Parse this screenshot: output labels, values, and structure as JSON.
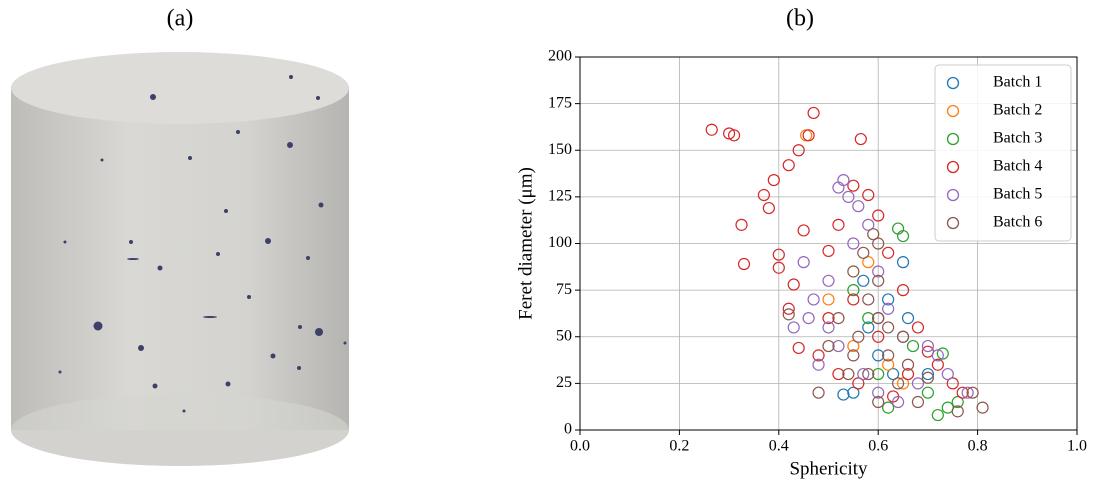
{
  "panel_labels": [
    "(a)",
    "(b)"
  ],
  "chart_data": {
    "type": "scatter",
    "x_label": "Sphericity",
    "y_label": "Feret diameter (μm)",
    "xlim": [
      0,
      1
    ],
    "ylim": [
      0,
      200
    ],
    "xticks": [
      {
        "value": 0,
        "label": "0.0"
      },
      0.2,
      0.4,
      0.6,
      0.8,
      {
        "value": 1,
        "label": "1.0"
      }
    ],
    "yticks": [
      0,
      25,
      50,
      75,
      100,
      125,
      150,
      175,
      200
    ],
    "grid": true,
    "legend": "upper right",
    "series": [
      {
        "name": "Batch 1",
        "color": "#1f77b4",
        "x": [
          0.55,
          0.6,
          0.65,
          0.62,
          0.58,
          0.66,
          0.7,
          0.53,
          0.57,
          0.63
        ],
        "y": [
          20,
          40,
          90,
          70,
          55,
          60,
          30,
          19,
          80,
          30
        ]
      },
      {
        "name": "Batch 2",
        "color": "#ff7f0e",
        "x": [
          0.455,
          0.6,
          0.55,
          0.62,
          0.58,
          0.65,
          0.5
        ],
        "y": [
          158,
          60,
          45,
          35,
          90,
          25,
          70
        ]
      },
      {
        "name": "Batch 3",
        "color": "#2ca02c",
        "x": [
          0.72,
          0.74,
          0.73,
          0.65,
          0.64,
          0.7,
          0.62,
          0.58,
          0.6,
          0.67,
          0.76,
          0.55
        ],
        "y": [
          8,
          12,
          41,
          104,
          108,
          20,
          12,
          60,
          30,
          45,
          15,
          75
        ]
      },
      {
        "name": "Batch 4",
        "color": "#d62728",
        "x": [
          0.265,
          0.3,
          0.31,
          0.325,
          0.33,
          0.37,
          0.38,
          0.39,
          0.4,
          0.4,
          0.42,
          0.44,
          0.46,
          0.47,
          0.565,
          0.42,
          0.43,
          0.45,
          0.44,
          0.5,
          0.52,
          0.55,
          0.58,
          0.6,
          0.62,
          0.65,
          0.68,
          0.7,
          0.72,
          0.75,
          0.77,
          0.55,
          0.6,
          0.5,
          0.48,
          0.66,
          0.63,
          0.56,
          0.52
        ],
        "y": [
          161,
          159,
          158,
          110,
          89,
          126,
          119,
          134,
          94,
          87,
          142,
          150,
          158,
          170,
          156,
          65,
          78,
          107,
          44,
          96,
          110,
          131,
          126,
          115,
          95,
          75,
          55,
          42,
          35,
          25,
          20,
          70,
          50,
          60,
          40,
          30,
          18,
          25,
          30
        ]
      },
      {
        "name": "Batch 5",
        "color": "#9467bd",
        "x": [
          0.53,
          0.52,
          0.54,
          0.56,
          0.45,
          0.47,
          0.5,
          0.48,
          0.55,
          0.58,
          0.6,
          0.62,
          0.65,
          0.7,
          0.72,
          0.74,
          0.78,
          0.5,
          0.52,
          0.57,
          0.6,
          0.64,
          0.68,
          0.46,
          0.43,
          0.6
        ],
        "y": [
          134,
          130,
          125,
          120,
          90,
          70,
          55,
          35,
          100,
          110,
          85,
          65,
          50,
          45,
          40,
          30,
          20,
          80,
          45,
          30,
          20,
          15,
          25,
          60,
          55,
          60
        ]
      },
      {
        "name": "Batch 6",
        "color": "#8c564b",
        "x": [
          0.81,
          0.79,
          0.76,
          0.68,
          0.6,
          0.58,
          0.56,
          0.55,
          0.6,
          0.62,
          0.57,
          0.59,
          0.5,
          0.52,
          0.54,
          0.64,
          0.66,
          0.7,
          0.6,
          0.48,
          0.42,
          0.58,
          0.6,
          0.62,
          0.55,
          0.65
        ],
        "y": [
          12,
          20,
          10,
          15,
          60,
          70,
          50,
          40,
          80,
          40,
          95,
          105,
          45,
          60,
          30,
          25,
          35,
          28,
          15,
          20,
          62,
          30,
          100,
          55,
          85,
          50
        ]
      }
    ]
  }
}
